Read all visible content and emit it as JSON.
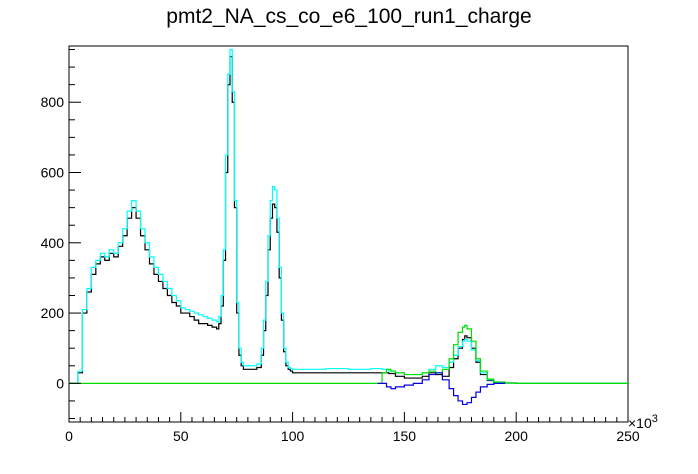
{
  "chart_data": {
    "type": "line",
    "title": "pmt2_NA_cs_co_e6_100_run1_charge",
    "xlabel": "",
    "ylabel": "",
    "x_multiplier_label": "×10",
    "x_multiplier_exponent": "3",
    "xlim": [
      0,
      250
    ],
    "ylim": [
      -110,
      960
    ],
    "x_ticks": [
      0,
      50,
      100,
      150,
      200,
      250
    ],
    "y_ticks": [
      0,
      200,
      400,
      600,
      800
    ],
    "grid": false,
    "legend": "none",
    "series": [
      {
        "color": "#000000",
        "x": [
          0,
          2,
          4,
          6,
          8,
          10,
          12,
          14,
          16,
          18,
          20,
          22,
          24,
          26,
          28,
          30,
          32,
          34,
          36,
          38,
          40,
          42,
          44,
          46,
          48,
          50,
          52,
          54,
          56,
          58,
          60,
          62,
          64,
          66,
          67,
          68,
          69,
          70,
          71,
          72,
          73,
          74,
          75,
          76,
          77,
          78,
          80,
          82,
          84,
          86,
          87,
          88,
          89,
          90,
          91,
          92,
          93,
          94,
          95,
          96,
          97,
          98,
          99,
          100,
          102,
          105,
          110,
          115,
          120,
          125,
          130,
          135,
          140,
          143,
          146,
          150,
          154,
          158,
          161,
          164,
          167,
          170,
          172,
          174,
          176,
          177,
          178,
          180,
          182,
          184,
          187,
          190,
          195,
          200,
          210,
          220,
          230,
          240,
          250
        ],
        "y": [
          0,
          0,
          30,
          200,
          260,
          310,
          340,
          360,
          350,
          370,
          360,
          390,
          420,
          470,
          500,
          470,
          420,
          380,
          340,
          310,
          290,
          270,
          250,
          230,
          220,
          200,
          200,
          190,
          180,
          170,
          170,
          165,
          160,
          155,
          170,
          220,
          350,
          600,
          850,
          930,
          800,
          500,
          200,
          80,
          50,
          40,
          40,
          40,
          45,
          80,
          150,
          250,
          380,
          470,
          510,
          500,
          430,
          300,
          180,
          90,
          50,
          40,
          35,
          30,
          30,
          30,
          30,
          30,
          30,
          30,
          30,
          30,
          30,
          28,
          20,
          15,
          15,
          20,
          30,
          25,
          20,
          45,
          70,
          100,
          125,
          135,
          130,
          100,
          60,
          25,
          8,
          3,
          1,
          0,
          0,
          0,
          0,
          0,
          0
        ]
      },
      {
        "color": "#00ffff",
        "x": [
          0,
          2,
          4,
          6,
          8,
          10,
          12,
          14,
          16,
          18,
          20,
          22,
          24,
          26,
          28,
          30,
          32,
          34,
          36,
          38,
          40,
          42,
          44,
          46,
          48,
          50,
          52,
          54,
          56,
          58,
          60,
          62,
          64,
          66,
          67,
          68,
          69,
          70,
          71,
          72,
          73,
          74,
          75,
          76,
          77,
          78,
          80,
          82,
          84,
          86,
          87,
          88,
          89,
          90,
          91,
          92,
          93,
          94,
          95,
          96,
          97,
          98,
          99,
          100,
          102,
          105,
          110,
          115,
          120,
          125,
          130,
          135,
          140,
          143,
          146,
          150,
          154,
          158,
          161,
          164,
          167,
          170,
          172,
          174,
          176,
          177,
          178,
          180,
          182,
          184,
          187,
          190,
          195,
          200,
          210,
          220,
          230,
          240,
          250
        ],
        "y": [
          0,
          0,
          35,
          210,
          270,
          330,
          350,
          370,
          360,
          380,
          370,
          400,
          440,
          490,
          520,
          490,
          440,
          400,
          360,
          330,
          310,
          290,
          270,
          250,
          235,
          215,
          210,
          205,
          200,
          195,
          190,
          185,
          180,
          175,
          190,
          250,
          380,
          650,
          880,
          950,
          830,
          520,
          230,
          100,
          60,
          50,
          50,
          50,
          55,
          100,
          180,
          290,
          420,
          520,
          560,
          550,
          470,
          330,
          200,
          100,
          60,
          45,
          42,
          40,
          40,
          40,
          40,
          42,
          42,
          40,
          40,
          42,
          40,
          35,
          30,
          25,
          25,
          30,
          40,
          50,
          45,
          60,
          80,
          105,
          120,
          125,
          120,
          95,
          65,
          30,
          10,
          3,
          1,
          0,
          0,
          0,
          0,
          0,
          0
        ]
      },
      {
        "color": "#00dd00",
        "x": [
          0,
          138,
          140,
          142,
          144,
          146,
          150,
          154,
          158,
          161,
          164,
          167,
          170,
          172,
          174,
          176,
          177,
          178,
          180,
          182,
          184,
          187,
          190,
          195,
          200,
          210,
          250
        ],
        "y": [
          0,
          0,
          30,
          40,
          35,
          30,
          25,
          25,
          30,
          35,
          30,
          40,
          70,
          110,
          145,
          160,
          165,
          155,
          120,
          70,
          35,
          12,
          4,
          1,
          0,
          0,
          0
        ]
      },
      {
        "color": "#0000dd",
        "x": [
          138,
          140,
          142,
          144,
          146,
          150,
          154,
          158,
          161,
          164,
          167,
          170,
          172,
          174,
          176,
          177,
          178,
          180,
          182,
          184,
          187,
          190,
          195
        ],
        "y": [
          0,
          0,
          -10,
          -15,
          -10,
          -5,
          0,
          10,
          25,
          30,
          10,
          -15,
          -35,
          -50,
          -60,
          -60,
          -55,
          -40,
          -25,
          -10,
          -3,
          0,
          0
        ]
      }
    ]
  }
}
